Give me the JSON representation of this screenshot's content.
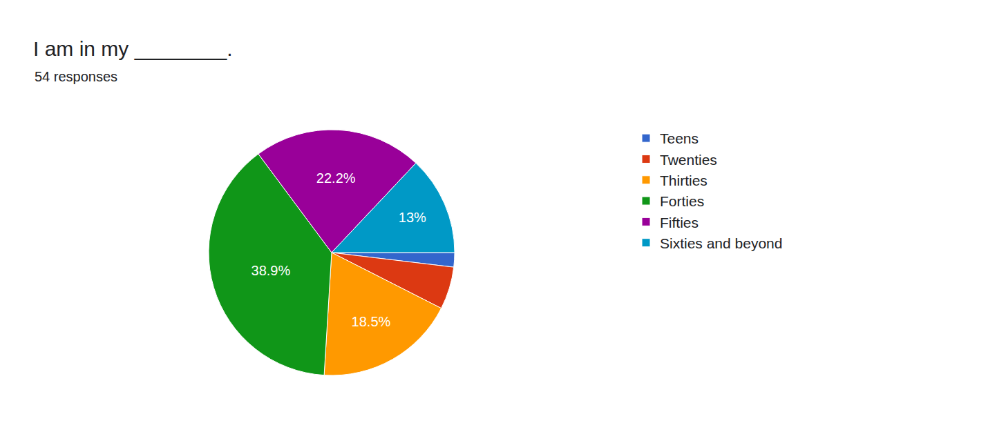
{
  "chart_data": {
    "type": "pie",
    "title": "I am in my ________.",
    "subtitle": "54 responses",
    "categories": [
      "Teens",
      "Twenties",
      "Thirties",
      "Forties",
      "Fifties",
      "Sixties and beyond"
    ],
    "values": [
      1.9,
      5.6,
      18.5,
      38.9,
      22.2,
      13
    ],
    "value_labels": [
      null,
      null,
      "18.5%",
      "38.9%",
      "22.2%",
      "13%"
    ],
    "colors": [
      "#3366cc",
      "#dc3912",
      "#ff9900",
      "#109618",
      "#990099",
      "#0099c6"
    ],
    "data_labels": true,
    "legend": "right"
  }
}
